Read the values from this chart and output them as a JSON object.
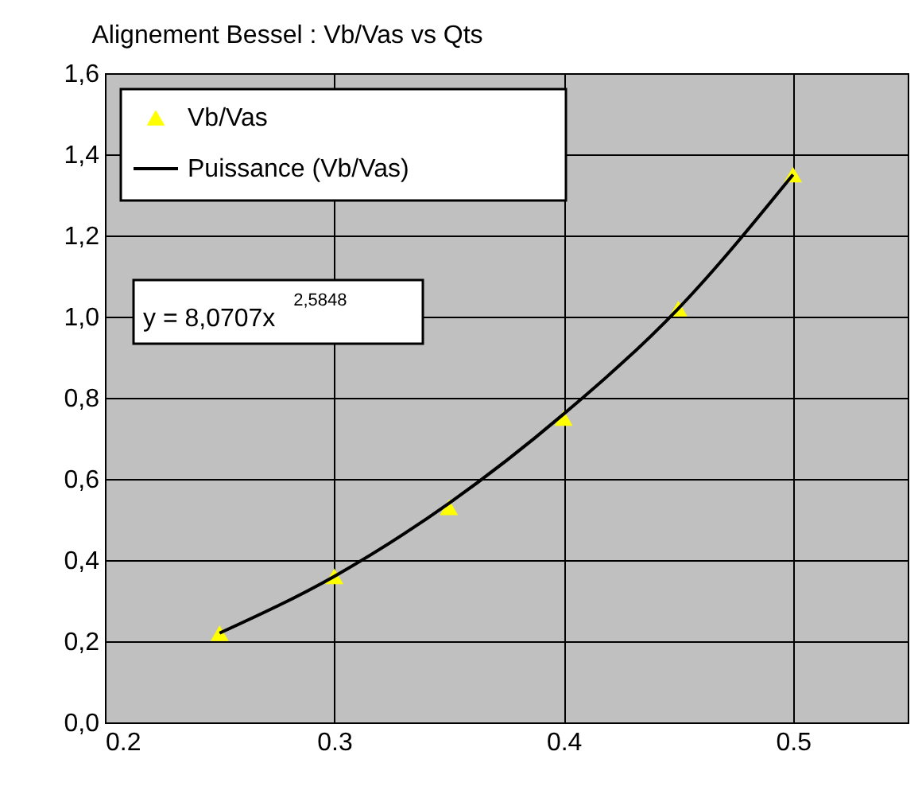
{
  "chart_data": {
    "type": "scatter",
    "title": "Alignement Bessel : Vb/Vas vs Qts",
    "x": [
      0.25,
      0.3,
      0.35,
      0.4,
      0.45,
      0.5
    ],
    "series": [
      {
        "name": "Vb/Vas",
        "color": "#ffff00",
        "marker": "triangle",
        "values": [
          0.22,
          0.36,
          0.53,
          0.75,
          1.02,
          1.35
        ]
      },
      {
        "name": "Puissance (Vb/Vas)",
        "type": "line",
        "color": "#000000",
        "marker": "none",
        "line_style": "solid",
        "x": [
          0.25,
          0.3,
          0.35,
          0.4,
          0.45,
          0.5
        ],
        "values": [
          0.22,
          0.36,
          0.54,
          0.76,
          1.02,
          1.35
        ]
      }
    ],
    "annotations": [
      "y = 8,0707x$^{2,5848}$"
    ],
    "xlim": [
      0.2,
      0.55
    ],
    "xticks": [
      0.2,
      0.3,
      0.4,
      0.5
    ],
    "ylim": [
      0,
      1.6
    ],
    "yticks": [
      {
        "value": 0,
        "label": "0,0"
      },
      {
        "value": 0.2,
        "label": "0,2"
      },
      {
        "value": 0.4,
        "label": "0,4"
      },
      {
        "value": 0.6,
        "label": "0,6"
      },
      {
        "value": 0.8,
        "label": "0,8"
      },
      {
        "value": 1.0,
        "label": "1,0"
      },
      {
        "value": 1.2,
        "label": "1,2"
      },
      {
        "value": 1.4,
        "label": "1,4"
      },
      {
        "value": 1.6,
        "label": "1,6"
      }
    ],
    "grid": true,
    "legend": "top left"
  }
}
